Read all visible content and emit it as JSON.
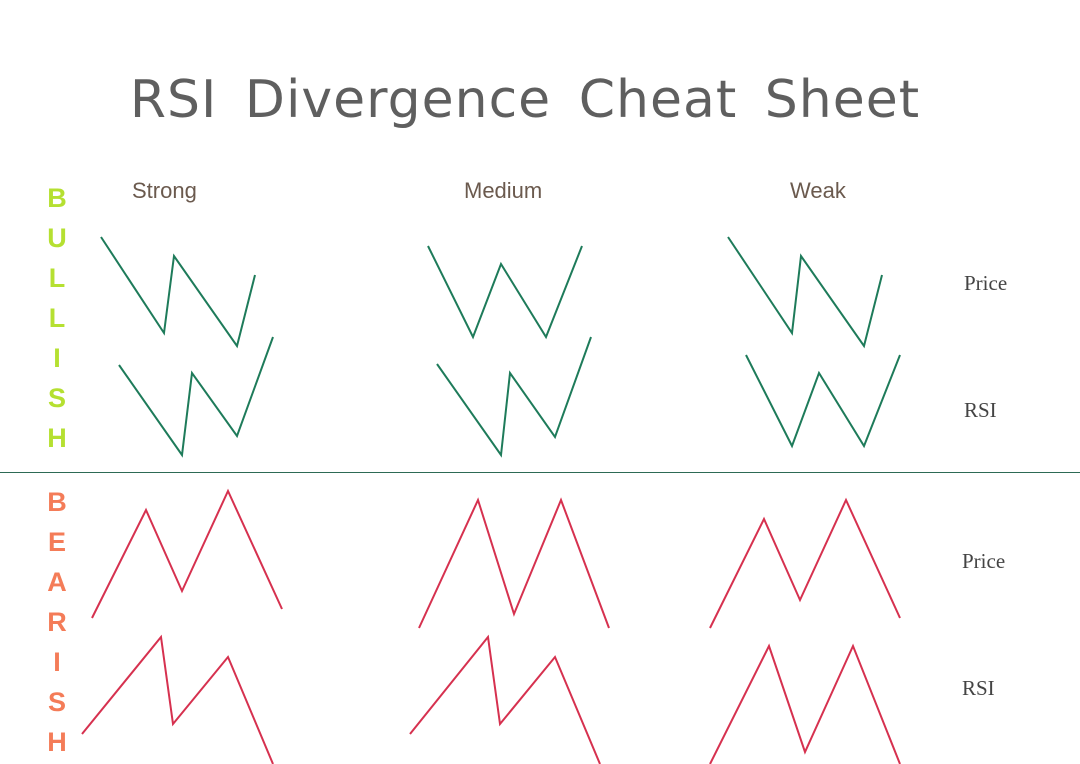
{
  "title": "RSI  Divergence Cheat Sheet",
  "columns": [
    "Strong",
    "Medium",
    "Weak"
  ],
  "rows": {
    "bullish": {
      "label": "BULLISH",
      "color": "#b5e031",
      "line_color": "#1e7b5a"
    },
    "bearish": {
      "label": "BEARISH",
      "color": "#f47c58",
      "line_color": "#d6314f"
    }
  },
  "side_labels": {
    "bullish_price": "Price",
    "bullish_rsi": "RSI",
    "bearish_price": "Price",
    "bearish_rsi": "RSI"
  }
}
